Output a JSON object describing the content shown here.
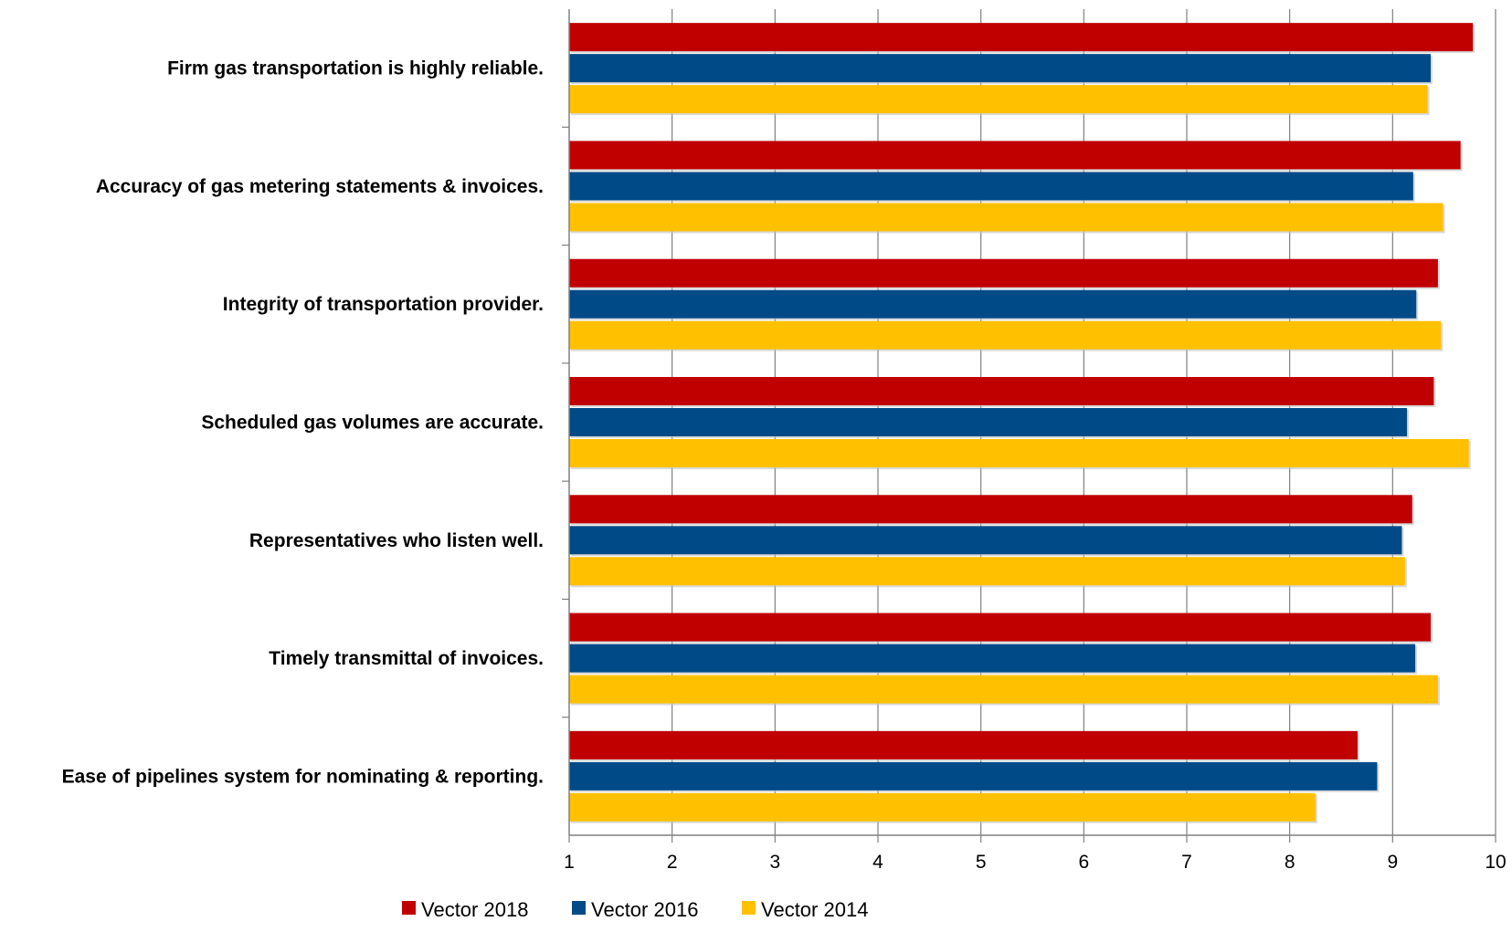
{
  "chart_data": {
    "type": "bar",
    "orientation": "horizontal",
    "title": "",
    "xlabel": "",
    "ylabel": "",
    "xlim": [
      1,
      10
    ],
    "xticks": [
      1,
      2,
      3,
      4,
      5,
      6,
      7,
      8,
      9,
      10
    ],
    "grid": true,
    "legend_position": "bottom",
    "categories": [
      "Firm gas transportation is highly reliable.",
      "Accuracy of gas metering statements & invoices.",
      "Integrity of transportation provider.",
      "Scheduled gas volumes are accurate.",
      "Representatives who listen well.",
      "Timely transmittal of invoices.",
      "Ease of pipelines system for nominating & reporting."
    ],
    "series": [
      {
        "name": "Vector 2018",
        "color": "#C00000",
        "values": [
          9.78,
          9.66,
          9.44,
          9.4,
          9.19,
          9.37,
          8.66
        ]
      },
      {
        "name": "Vector 2016",
        "color": "#004B87",
        "values": [
          9.37,
          9.2,
          9.23,
          9.14,
          9.09,
          9.22,
          8.85
        ]
      },
      {
        "name": "Vector 2014",
        "color": "#FFC000",
        "values": [
          9.34,
          9.49,
          9.47,
          9.74,
          9.12,
          9.44,
          8.25
        ]
      }
    ]
  }
}
